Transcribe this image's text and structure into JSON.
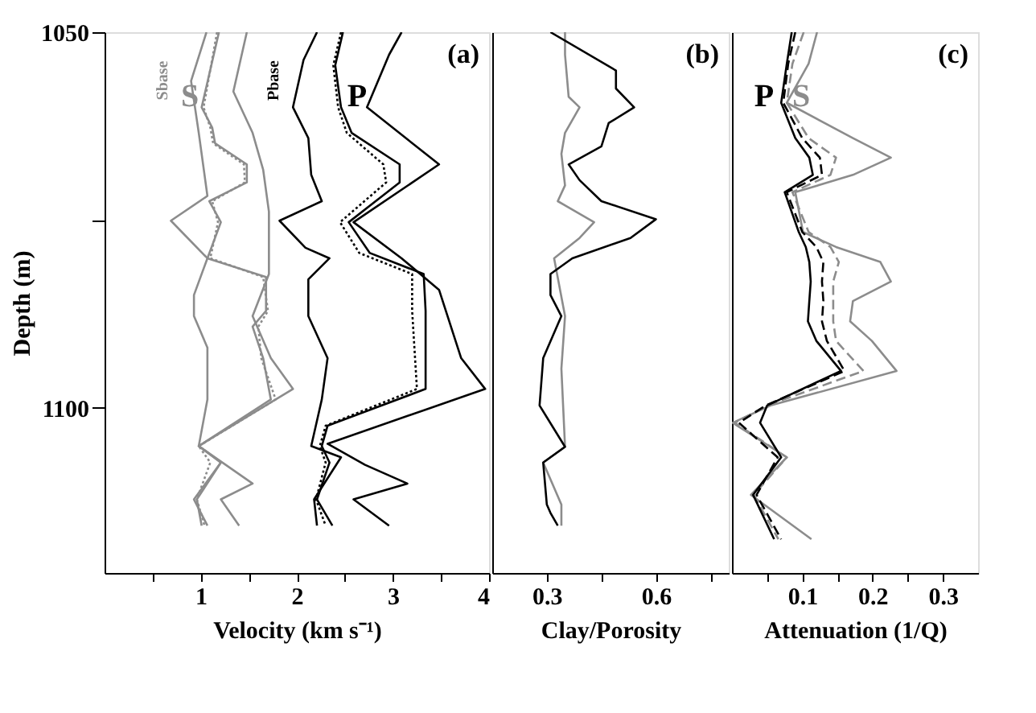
{
  "chart_data": [
    {
      "type": "line",
      "xlabel": "Velocity (km s⁻¹)",
      "ylabel": "Depth (m)",
      "xlim": [
        0,
        4
      ],
      "xticks": [
        {
          "value": 0.5,
          "label": null
        },
        1,
        {
          "value": 1.5,
          "label": null
        },
        2,
        {
          "value": 2.5,
          "label": null
        },
        3,
        {
          "value": 3.5,
          "label": null
        },
        4
      ],
      "ylim": [
        1122,
        1050
      ],
      "yticks": [
        1050,
        {
          "value": 1075,
          "label": null
        },
        1100
      ],
      "series": [
        {
          "color": "#8c8c8c",
          "line_style": "solid",
          "x": [
            1.06,
            0.9,
            0.98,
            1.07,
            0.69,
            1.07,
            0.93,
            0.93,
            1.07,
            1.07,
            0.98,
            1.21,
            0.96,
            1.01
          ],
          "values": [
            1050,
            1056.5,
            1063.4,
            1071.8,
            1075.1,
            1080.1,
            1085,
            1087.8,
            1092,
            1098.9,
            1105.1,
            1107.3,
            1112.2,
            1115.7
          ]
        },
        {
          "color": "#8c8c8c",
          "line_style": "solid",
          "x": [
            1.19,
            1.01,
            1.12,
            1.15,
            1.48,
            1.48,
            1.09,
            1.21,
            1.07,
            1.68,
            1.68,
            1.54,
            1.65,
            1.73,
            0.98,
            1.21,
            0.93,
            1.07
          ],
          "values": [
            1050,
            1060,
            1062.7,
            1064.8,
            1067.6,
            1070,
            1072.5,
            1075.3,
            1080.1,
            1082.6,
            1087.1,
            1089.2,
            1093.4,
            1098.9,
            1105.1,
            1107.3,
            1112.2,
            1115.7
          ]
        },
        {
          "color": "#8c8c8c",
          "line_style": "dotted",
          "x": [
            1.17,
            1.03,
            1.1,
            1.13,
            1.45,
            1.46,
            1.12,
            1.18,
            1.1,
            1.65,
            1.7,
            1.6,
            1.63,
            1.78,
            0.98,
            1.1,
            0.96,
            1.04
          ],
          "values": [
            1050,
            1060,
            1062.7,
            1064.8,
            1067.6,
            1070,
            1072.5,
            1075.3,
            1080.1,
            1082.6,
            1087.1,
            1089.2,
            1093.4,
            1098.9,
            1105.1,
            1107.3,
            1112.2,
            1115.7
          ]
        },
        {
          "color": "#8c8c8c",
          "line_style": "solid",
          "x": [
            1.48,
            1.34,
            1.54,
            1.65,
            1.71,
            1.71,
            1.54,
            1.73,
            1.96,
            0.98,
            1.54,
            1.21,
            1.4
          ],
          "values": [
            1050,
            1057.9,
            1063.4,
            1068.3,
            1073.9,
            1082.2,
            1087.8,
            1093.4,
            1097.5,
            1105.1,
            1110.1,
            1112.2,
            1115.7
          ]
        },
        {
          "color": "#000000",
          "line_style": "solid",
          "x": [
            2.21,
            2.07,
            1.96,
            2.12,
            2.15,
            2.26,
            1.82,
            2.09,
            2.34,
            2.12,
            2.12,
            2.32,
            2.26,
            2.15,
            2.46,
            2.18,
            2.21
          ],
          "values": [
            1050,
            1053.7,
            1060,
            1064.1,
            1069,
            1072.5,
            1075.1,
            1078.7,
            1080.1,
            1082.9,
            1087.8,
            1093.4,
            1098.9,
            1105.1,
            1106.6,
            1112.2,
            1115.7
          ]
        },
        {
          "color": "#000000",
          "line_style": "solid",
          "x": [
            2.48,
            2.4,
            2.46,
            2.57,
            3.07,
            3.07,
            2.54,
            2.76,
            3.32,
            3.34,
            3.34,
            2.32,
            2.26,
            2.34,
            2.21,
            2.37
          ],
          "values": [
            1050,
            1054.4,
            1060,
            1063.4,
            1067.6,
            1070,
            1075.3,
            1079.4,
            1082.2,
            1087.1,
            1097.5,
            1102.4,
            1105.1,
            1107.3,
            1112.2,
            1115.7
          ]
        },
        {
          "color": "#000000",
          "line_style": "dotted",
          "x": [
            2.46,
            2.38,
            2.43,
            2.52,
            2.9,
            2.93,
            2.45,
            2.65,
            3.2,
            3.2,
            3.25,
            2.3,
            2.24,
            2.3,
            2.2,
            2.3
          ],
          "values": [
            1050,
            1054.4,
            1060,
            1063.4,
            1067.6,
            1070,
            1075.3,
            1079.4,
            1082.2,
            1087.1,
            1097.5,
            1102.4,
            1105.1,
            1107.3,
            1112.2,
            1115.7
          ]
        },
        {
          "color": "#000000",
          "line_style": "solid",
          "x": [
            3.09,
            2.96,
            2.73,
            3.48,
            2.59,
            3.09,
            3.48,
            3.71,
            3.96,
            2.32,
            2.71,
            3.15,
            2.59,
            2.96
          ],
          "values": [
            1050,
            1053,
            1060,
            1067.6,
            1075.3,
            1080.1,
            1084.3,
            1093.4,
            1097.5,
            1104.8,
            1107.6,
            1110.1,
            1112.2,
            1115.7
          ]
        }
      ],
      "annotations": [
        "Sbase",
        "S",
        "Pbase",
        "P",
        "(a)"
      ]
    },
    {
      "type": "line",
      "xlabel": "Clay/Porosity",
      "xlim": [
        0.15,
        0.8
      ],
      "xticks": [
        0.3,
        {
          "value": 0.45,
          "label": null
        },
        0.6,
        {
          "value": 0.75,
          "label": null
        }
      ],
      "ylim": [
        1122,
        1050
      ],
      "tick_labels": "x",
      "series": [
        {
          "color": "#8c8c8c",
          "line_style": "solid",
          "x": [
            0.35,
            0.35,
            0.36,
            0.39,
            0.35,
            0.34,
            0.35,
            0.33,
            0.43,
            0.39,
            0.32,
            0.35,
            0.34,
            0.35,
            0.29,
            0.34,
            0.34
          ],
          "values": [
            1050,
            1053,
            1058.6,
            1060,
            1063.4,
            1066.2,
            1070.4,
            1072.5,
            1075.3,
            1077.4,
            1080.1,
            1087.8,
            1094.8,
            1105.2,
            1107.3,
            1112.9,
            1115.7
          ]
        },
        {
          "color": "#000000",
          "line_style": "solid",
          "x": [
            0.31,
            0.49,
            0.49,
            0.54,
            0.47,
            0.45,
            0.36,
            0.39,
            0.45,
            0.6,
            0.53,
            0.37,
            0.31,
            0.31,
            0.34,
            0.29,
            0.28,
            0.35,
            0.29,
            0.3,
            0.31,
            0.33
          ],
          "values": [
            1050,
            1055.1,
            1057.5,
            1060,
            1062.1,
            1065.2,
            1067.6,
            1069.7,
            1072.5,
            1074.9,
            1077.4,
            1080.1,
            1082.2,
            1085,
            1087.8,
            1093.4,
            1099.7,
            1105.2,
            1107.3,
            1112.9,
            1114,
            1115.7
          ]
        }
      ],
      "annotations": [
        "(b)"
      ]
    },
    {
      "type": "line",
      "xlabel": "Attenuation (1/Q)",
      "xlim": [
        0,
        0.35
      ],
      "xticks": [
        {
          "value": 0.05,
          "label": null
        },
        0.1,
        {
          "value": 0.15,
          "label": null
        },
        0.2,
        {
          "value": 0.25,
          "label": null
        },
        0.3
      ],
      "ylim": [
        1122,
        1050
      ],
      "tick_labels": "x",
      "series": [
        {
          "color": "#8c8c8c",
          "line_style": "solid",
          "x": [
            0.121,
            0.109,
            0.078,
            0.172,
            0.226,
            0.172,
            0.09,
            0.101,
            0.148,
            0.211,
            0.226,
            0.172,
            0.168,
            0.199,
            0.234,
            0.055,
            0.001,
            0.078,
            0.027,
            0.113
          ],
          "values": [
            1050,
            1054.2,
            1059.4,
            1064.1,
            1066.7,
            1069,
            1071.3,
            1076.6,
            1078.6,
            1080.6,
            1083.2,
            1085.8,
            1088.5,
            1091.1,
            1095.1,
            1099.7,
            1102,
            1106.6,
            1111.6,
            1117.5
          ]
        },
        {
          "color": "#8c8c8c",
          "line_style": "dashed",
          "x": [
            0.102,
            0.086,
            0.078,
            0.109,
            0.148,
            0.14,
            0.086,
            0.109,
            0.14,
            0.152,
            0.144,
            0.144,
            0.144,
            0.148,
            0.187,
            0.05,
            0.004,
            0.078,
            0.031,
            0.066
          ],
          "values": [
            1050,
            1054.2,
            1059.4,
            1064.1,
            1066.7,
            1069,
            1071.3,
            1076.6,
            1078.6,
            1080.6,
            1083.2,
            1085.8,
            1088.5,
            1091.1,
            1095.1,
            1099.7,
            1102,
            1106.6,
            1111.6,
            1117.5
          ]
        },
        {
          "color": "#000000",
          "line_style": "dashed",
          "x": [
            0.09,
            0.08,
            0.073,
            0.1,
            0.125,
            0.128,
            0.078,
            0.1,
            0.12,
            0.13,
            0.128,
            0.13,
            0.128,
            0.135,
            0.16,
            0.048,
            0.01,
            0.065,
            0.035,
            0.07
          ],
          "values": [
            1050,
            1054.2,
            1059.4,
            1064.1,
            1066.7,
            1069,
            1071.3,
            1076.6,
            1078.6,
            1080.6,
            1083.2,
            1085.8,
            1088.5,
            1091.1,
            1095.1,
            1099.7,
            1102,
            1106.6,
            1111.6,
            1117.5
          ]
        },
        {
          "color": "#000000",
          "line_style": "solid",
          "x": [
            0.085,
            0.078,
            0.07,
            0.09,
            0.11,
            0.115,
            0.075,
            0.095,
            0.105,
            0.11,
            0.112,
            0.11,
            0.108,
            0.12,
            0.155,
            0.05,
            0.04,
            0.07,
            0.03,
            0.06
          ],
          "values": [
            1050,
            1054.2,
            1059.4,
            1064.1,
            1066.7,
            1069,
            1071.3,
            1076.6,
            1078.6,
            1080.6,
            1083.2,
            1085.8,
            1088.5,
            1091.1,
            1095.1,
            1099.7,
            1102,
            1106.6,
            1111.6,
            1117.5
          ]
        }
      ],
      "annotations": [
        "P",
        "S",
        "(c)"
      ]
    }
  ]
}
